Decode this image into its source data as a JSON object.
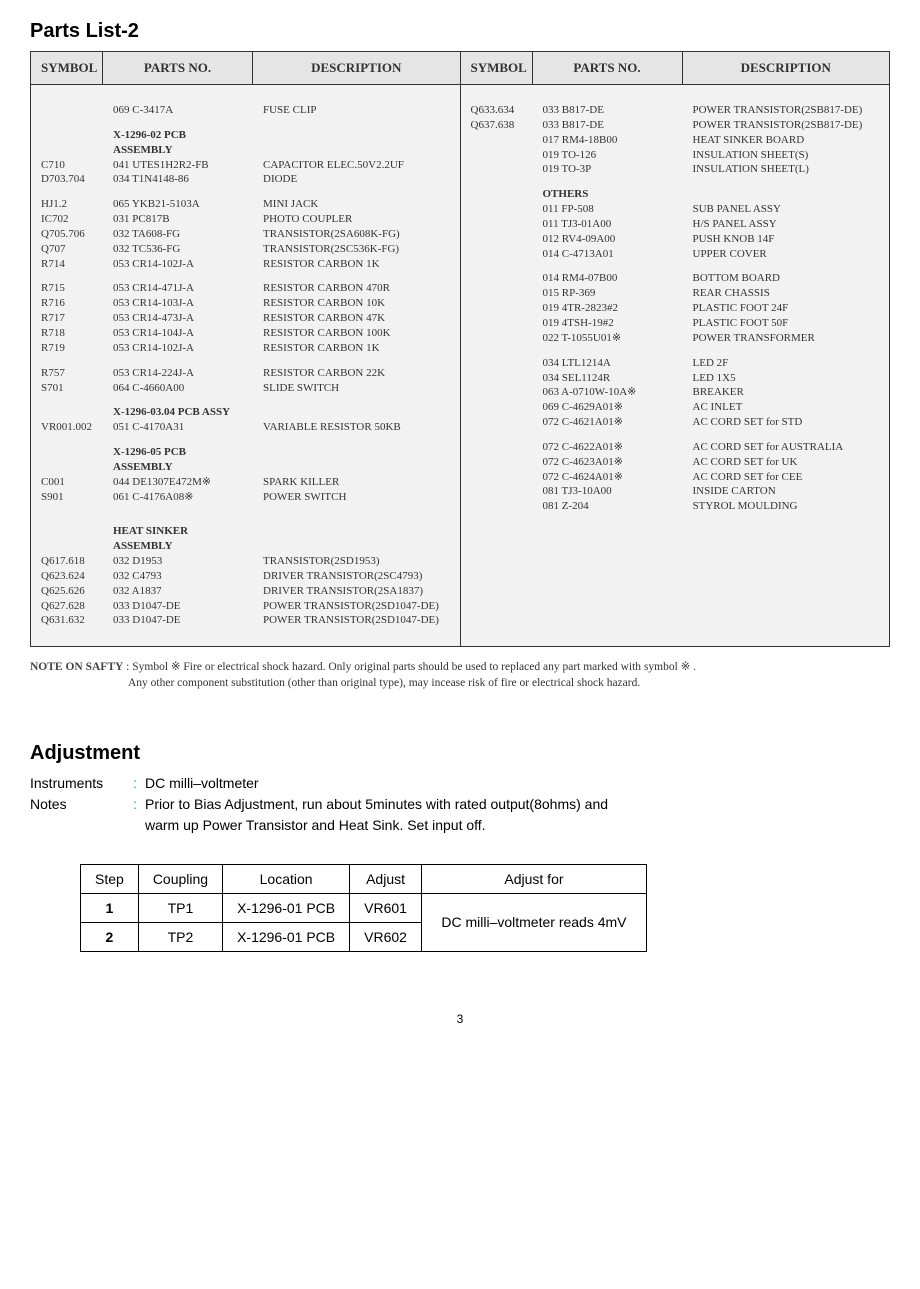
{
  "titles": {
    "parts_list": "Parts List-2",
    "adjustment": "Adjustment"
  },
  "columns": {
    "symbol": "SYMBOL",
    "parts_no": "PARTS NO.",
    "description": "DESCRIPTION"
  },
  "parts_left": [
    {
      "type": "spacer"
    },
    {
      "sym": "",
      "part": "069 C-3417A",
      "desc": "FUSE CLIP"
    },
    {
      "type": "spacer"
    },
    {
      "sym": "",
      "part": "X-1296-02 PCB ASSEMBLY",
      "desc": "",
      "bold": true
    },
    {
      "sym": "C710",
      "part": "041 UTES1H2R2-FB",
      "desc": "CAPACITOR ELEC.50V2.2UF"
    },
    {
      "sym": "D703.704",
      "part": "034 T1N4148-86",
      "desc": "DIODE"
    },
    {
      "type": "spacer"
    },
    {
      "sym": "HJ1.2",
      "part": "065 YKB21-5103A",
      "desc": "MINI JACK"
    },
    {
      "sym": "IC702",
      "part": "031 PC817B",
      "desc": "PHOTO COUPLER"
    },
    {
      "sym": "Q705.706",
      "part": "032 TA608-FG",
      "desc": "TRANSISTOR(2SA608K-FG)"
    },
    {
      "sym": "Q707",
      "part": "032 TC536-FG",
      "desc": "TRANSISTOR(2SC536K-FG)"
    },
    {
      "sym": "R714",
      "part": "053 CR14-102J-A",
      "desc": "RESISTOR CARBON 1K"
    },
    {
      "type": "spacer"
    },
    {
      "sym": "R715",
      "part": "053 CR14-471J-A",
      "desc": "RESISTOR CARBON 470R"
    },
    {
      "sym": "R716",
      "part": "053 CR14-103J-A",
      "desc": "RESISTOR CARBON 10K"
    },
    {
      "sym": "R717",
      "part": "053 CR14-473J-A",
      "desc": "RESISTOR CARBON 47K"
    },
    {
      "sym": "R718",
      "part": "053 CR14-104J-A",
      "desc": "RESISTOR CARBON 100K"
    },
    {
      "sym": "R719",
      "part": "053 CR14-102J-A",
      "desc": "RESISTOR CARBON 1K"
    },
    {
      "type": "spacer"
    },
    {
      "sym": "R757",
      "part": "053 CR14-224J-A",
      "desc": "RESISTOR CARBON 22K"
    },
    {
      "sym": "S701",
      "part": "064 C-4660A00",
      "desc": "SLIDE SWITCH"
    },
    {
      "type": "spacer"
    },
    {
      "sym": "",
      "part": "X-1296-03.04 PCB ASSY",
      "desc": "",
      "bold": true
    },
    {
      "sym": "VR001.002",
      "part": "051 C-4170A31",
      "desc": "VARIABLE RESISTOR 50KB"
    },
    {
      "type": "spacer"
    },
    {
      "sym": "",
      "part": "X-1296-05 PCB ASSEMBLY",
      "desc": "",
      "bold": true
    },
    {
      "sym": "C001",
      "part": "044 DE1307E472M※",
      "desc": "SPARK KILLER"
    },
    {
      "sym": "S901",
      "part": "061 C-4176A08※",
      "desc": "POWER SWITCH"
    },
    {
      "type": "spacer"
    },
    {
      "type": "spacer"
    },
    {
      "sym": "",
      "part": "HEAT SINKER ASSEMBLY",
      "desc": "",
      "bold": true
    },
    {
      "sym": "Q617.618",
      "part": "032 D1953",
      "desc": "TRANSISTOR(2SD1953)"
    },
    {
      "sym": "Q623.624",
      "part": "032 C4793",
      "desc": "DRIVER TRANSISTOR(2SC4793)"
    },
    {
      "sym": "Q625.626",
      "part": "032 A1837",
      "desc": "DRIVER TRANSISTOR(2SA1837)"
    },
    {
      "sym": "Q627.628",
      "part": "033 D1047-DE",
      "desc": "POWER TRANSISTOR(2SD1047-DE)"
    },
    {
      "sym": "Q631.632",
      "part": "033 D1047-DE",
      "desc": "POWER TRANSISTOR(2SD1047-DE)"
    },
    {
      "type": "spacer"
    }
  ],
  "parts_right": [
    {
      "type": "spacer"
    },
    {
      "sym": "Q633.634",
      "part": "033 B817-DE",
      "desc": "POWER TRANSISTOR(2SB817-DE)"
    },
    {
      "sym": "Q637.638",
      "part": "033 B817-DE",
      "desc": "POWER TRANSISTOR(2SB817-DE)"
    },
    {
      "sym": "",
      "part": "017 RM4-18B00",
      "desc": "HEAT SINKER BOARD"
    },
    {
      "sym": "",
      "part": "019 TO-126",
      "desc": "INSULATION SHEET(S)"
    },
    {
      "sym": "",
      "part": "019 TO-3P",
      "desc": "INSULATION SHEET(L)"
    },
    {
      "type": "spacer"
    },
    {
      "sym": "",
      "part": "OTHERS",
      "desc": "",
      "bold": true
    },
    {
      "sym": "",
      "part": "011 FP-508",
      "desc": "SUB PANEL ASSY"
    },
    {
      "sym": "",
      "part": "011 TJ3-01A00",
      "desc": "H/S PANEL ASSY"
    },
    {
      "sym": "",
      "part": "012 RV4-09A00",
      "desc": "PUSH KNOB 14F"
    },
    {
      "sym": "",
      "part": "014 C-4713A01",
      "desc": "UPPER COVER"
    },
    {
      "type": "spacer"
    },
    {
      "sym": "",
      "part": "014 RM4-07B00",
      "desc": "BOTTOM BOARD"
    },
    {
      "sym": "",
      "part": "015 RP-369",
      "desc": "REAR CHASSIS"
    },
    {
      "sym": "",
      "part": "019 4TR-2823#2",
      "desc": "PLASTIC FOOT 24F"
    },
    {
      "sym": "",
      "part": "019 4TSH-19#2",
      "desc": "PLASTIC FOOT 50F"
    },
    {
      "sym": "",
      "part": "022 T-1055U01※",
      "desc": "POWER TRANSFORMER"
    },
    {
      "type": "spacer"
    },
    {
      "sym": "",
      "part": "034 LTL1214A",
      "desc": "LED 2F"
    },
    {
      "sym": "",
      "part": "034 SEL1124R",
      "desc": "LED 1X5"
    },
    {
      "sym": "",
      "part": "063 A-0710W-10A※",
      "desc": "BREAKER"
    },
    {
      "sym": "",
      "part": "069 C-4629A01※",
      "desc": "AC INLET"
    },
    {
      "sym": "",
      "part": "072 C-4621A01※",
      "desc": "AC CORD SET for STD"
    },
    {
      "type": "spacer"
    },
    {
      "sym": "",
      "part": "072 C-4622A01※",
      "desc": "AC CORD SET for AUSTRALIA"
    },
    {
      "sym": "",
      "part": "072 C-4623A01※",
      "desc": "AC CORD SET for UK"
    },
    {
      "sym": "",
      "part": "072 C-4624A01※",
      "desc": "AC CORD SET for CEE"
    },
    {
      "sym": "",
      "part": "081 TJ3-10A00",
      "desc": "INSIDE CARTON"
    },
    {
      "sym": "",
      "part": "081 Z-204",
      "desc": "STYROL MOULDING"
    }
  ],
  "note": {
    "label": "NOTE ON SAFTY",
    "line1": " : Symbol ※ Fire or electrical shock hazard. Only original parts should be used to replaced any part marked with symbol ※ .",
    "line2": "Any other component substitution (other than original type), may incease risk of fire or electrical shock hazard."
  },
  "adjustment": {
    "instruments_key": "Instruments",
    "instruments_val": "DC milli–voltmeter",
    "notes_key": "Notes",
    "notes_val": "Prior to Bias Adjustment, run about 5minutes with rated output(8ohms) and",
    "notes_cont": "warm up Power Transistor and Heat Sink. Set input off."
  },
  "adj_table": {
    "headers": {
      "step": "Step",
      "coupling": "Coupling",
      "location": "Location",
      "adjust": "Adjust",
      "adjust_for": "Adjust for"
    },
    "rows": [
      {
        "step": "1",
        "coupling": "TP1",
        "location": "X-1296-01  PCB",
        "adjust": "VR601"
      },
      {
        "step": "2",
        "coupling": "TP2",
        "location": "X-1296-01  PCB",
        "adjust": "VR602"
      }
    ],
    "adjust_for": "DC milli–voltmeter reads 4mV"
  },
  "page_number": "3",
  "colors": {
    "header_bg": "#e5e5e5",
    "body_bg": "#f2f2f2",
    "text": "#333333",
    "accent": "#0aa0d8"
  }
}
